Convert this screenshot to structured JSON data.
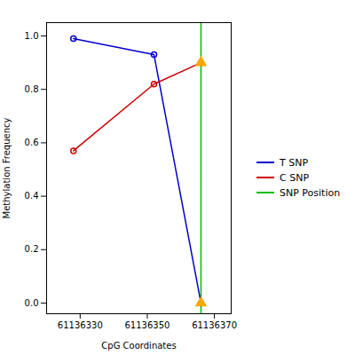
{
  "chart_data": {
    "type": "line",
    "xlabel": "CpG Coordinates",
    "ylabel": "Methylation Frequency",
    "x": [
      61136328,
      61136352,
      61136366
    ],
    "series": [
      {
        "name": "T SNP",
        "color": "#0000CC",
        "values": [
          0.99,
          0.93,
          0.0
        ],
        "marker": "circle"
      },
      {
        "name": "C SNP",
        "color": "#CC0000",
        "values": [
          0.57,
          0.82,
          0.9
        ],
        "marker": "circle"
      }
    ],
    "snp_line": {
      "name": "SNP Position",
      "x": 61136366,
      "color": "#00BB00"
    },
    "snp_markers": {
      "x": 61136366,
      "values": [
        0.0,
        0.9
      ],
      "color": "#FFA500",
      "marker": "triangle"
    },
    "xlim": [
      61136320,
      61136375
    ],
    "ylim": [
      -0.04,
      1.05
    ],
    "xticks": [
      61136330,
      61136350,
      61136370
    ],
    "yticks": [
      {
        "value": 0.0,
        "label": "0.0"
      },
      0.2,
      0.4,
      0.6,
      0.8,
      {
        "value": 1.0,
        "label": "1.0"
      }
    ],
    "grid": false,
    "legend": "right"
  }
}
